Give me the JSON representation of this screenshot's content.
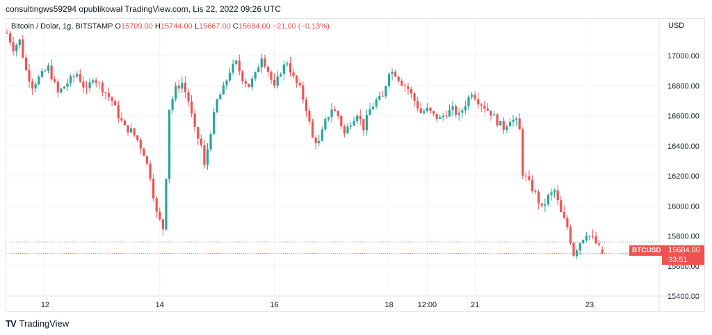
{
  "header": {
    "published_by": "consultingws59294 opublikował TradingView.com, Lis 22, 2022 09:26 UTC"
  },
  "legend": {
    "symbol": "Bitcoin / Dolar, 1g, BITSTAMP",
    "open_label": "O",
    "open": "15709.00",
    "high_label": "H",
    "high": "15744.00",
    "low_label": "L",
    "low": "15667.00",
    "close_label": "C",
    "close": "15684.00",
    "change": "−21.00 (−0.13%)"
  },
  "price_axis": {
    "currency": "USD"
  },
  "price_tag": {
    "symbol": "BTCUSD",
    "price": "15684.00",
    "countdown": "33:51"
  },
  "footer": {
    "brand": "TradingView",
    "logo": "TV"
  },
  "colors": {
    "up": "#26a69a",
    "down": "#ef5350",
    "grid": "#f0f3fa",
    "text": "#131722"
  },
  "chart_data": {
    "type": "candlestick",
    "ylim": [
      15400,
      17250
    ],
    "y_ticks": [
      15400,
      15600,
      15800,
      16000,
      16200,
      16400,
      16600,
      16800,
      17000
    ],
    "x_ticks": [
      {
        "label": "12",
        "t": 12
      },
      {
        "label": "14",
        "t": 48
      },
      {
        "label": "16",
        "t": 84
      },
      {
        "label": "18",
        "t": 120
      },
      {
        "label": "12:00",
        "t": 132
      },
      {
        "label": "21",
        "t": 147
      },
      {
        "label": "23",
        "t": 183
      }
    ],
    "last_price": 15684,
    "prev_high_line": 15760,
    "close_path": [
      [
        0,
        17150
      ],
      [
        2,
        17050
      ],
      [
        4,
        17100
      ],
      [
        6,
        16900
      ],
      [
        8,
        16800
      ],
      [
        10,
        16850
      ],
      [
        13,
        16920
      ],
      [
        16,
        16750
      ],
      [
        19,
        16820
      ],
      [
        22,
        16880
      ],
      [
        25,
        16760
      ],
      [
        27,
        16860
      ],
      [
        30,
        16780
      ],
      [
        33,
        16700
      ],
      [
        35,
        16600
      ],
      [
        37,
        16520
      ],
      [
        39,
        16500
      ],
      [
        41,
        16440
      ],
      [
        43,
        16350
      ],
      [
        45,
        16200
      ],
      [
        47,
        15950
      ],
      [
        49,
        15850
      ],
      [
        50,
        16200
      ],
      [
        51,
        16650
      ],
      [
        53,
        16780
      ],
      [
        55,
        16820
      ],
      [
        57,
        16700
      ],
      [
        59,
        16500
      ],
      [
        61,
        16400
      ],
      [
        62,
        16260
      ],
      [
        64,
        16500
      ],
      [
        66,
        16700
      ],
      [
        68,
        16780
      ],
      [
        70,
        16900
      ],
      [
        72,
        16950
      ],
      [
        74,
        16850
      ],
      [
        76,
        16800
      ],
      [
        78,
        16870
      ],
      [
        80,
        17000
      ],
      [
        82,
        16900
      ],
      [
        84,
        16780
      ],
      [
        86,
        16900
      ],
      [
        88,
        16960
      ],
      [
        90,
        16850
      ],
      [
        92,
        16780
      ],
      [
        94,
        16650
      ],
      [
        96,
        16450
      ],
      [
        98,
        16420
      ],
      [
        100,
        16560
      ],
      [
        102,
        16650
      ],
      [
        104,
        16600
      ],
      [
        106,
        16480
      ],
      [
        108,
        16560
      ],
      [
        110,
        16620
      ],
      [
        112,
        16520
      ],
      [
        114,
        16640
      ],
      [
        116,
        16700
      ],
      [
        118,
        16720
      ],
      [
        120,
        16900
      ],
      [
        122,
        16880
      ],
      [
        124,
        16820
      ],
      [
        126,
        16780
      ],
      [
        128,
        16700
      ],
      [
        130,
        16620
      ],
      [
        132,
        16640
      ],
      [
        134,
        16600
      ],
      [
        136,
        16580
      ],
      [
        138,
        16620
      ],
      [
        140,
        16640
      ],
      [
        142,
        16600
      ],
      [
        144,
        16680
      ],
      [
        146,
        16760
      ],
      [
        148,
        16700
      ],
      [
        150,
        16660
      ],
      [
        152,
        16620
      ],
      [
        154,
        16560
      ],
      [
        156,
        16520
      ],
      [
        158,
        16580
      ],
      [
        160,
        16560
      ],
      [
        161,
        16500
      ],
      [
        162,
        16220
      ],
      [
        164,
        16150
      ],
      [
        166,
        16080
      ],
      [
        168,
        15980
      ],
      [
        170,
        16060
      ],
      [
        172,
        16100
      ],
      [
        174,
        15950
      ],
      [
        176,
        15860
      ],
      [
        178,
        15680
      ],
      [
        180,
        15760
      ],
      [
        182,
        15820
      ],
      [
        184,
        15780
      ],
      [
        186,
        15720
      ],
      [
        187,
        15684
      ]
    ]
  }
}
